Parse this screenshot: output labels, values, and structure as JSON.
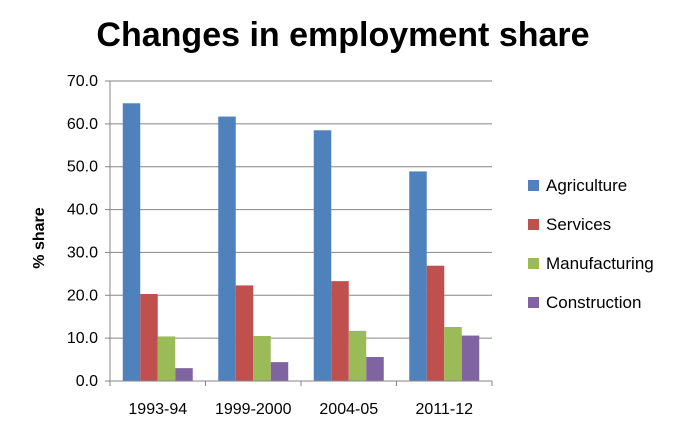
{
  "chart_data": {
    "type": "bar",
    "title": "Changes in employment share",
    "xlabel": "",
    "ylabel": "% share",
    "ylim": [
      0,
      70
    ],
    "yticks": [
      "0.0",
      "10.0",
      "20.0",
      "30.0",
      "40.0",
      "50.0",
      "60.0",
      "70.0"
    ],
    "categories": [
      "1993-94",
      "1999-2000",
      "2004-05",
      "2011-12"
    ],
    "series": [
      {
        "name": "Agriculture",
        "color": "#4F81BD",
        "values": [
          64.8,
          61.7,
          58.5,
          48.9
        ]
      },
      {
        "name": "Services",
        "color": "#C0504D",
        "values": [
          20.3,
          22.3,
          23.3,
          26.9
        ]
      },
      {
        "name": "Manufacturing",
        "color": "#9BBB59",
        "values": [
          10.4,
          10.5,
          11.7,
          12.6
        ]
      },
      {
        "name": "Construction",
        "color": "#8064A2",
        "values": [
          3.0,
          4.4,
          5.6,
          10.6
        ]
      }
    ],
    "grid": true,
    "legend_position": "right"
  }
}
